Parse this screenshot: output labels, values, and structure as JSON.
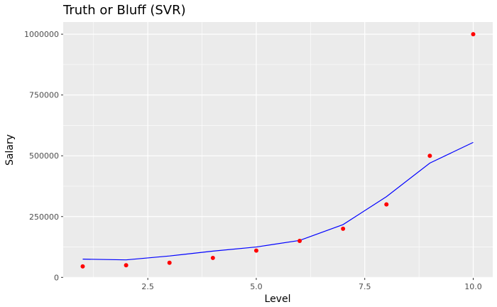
{
  "chart_data": {
    "type": "scatter",
    "title": "Truth or Bluff (SVR)",
    "xlabel": "Level",
    "ylabel": "Salary",
    "xlim": [
      0.55,
      10.45
    ],
    "ylim": [
      -2000,
      1050000
    ],
    "x_ticks": [
      2.5,
      5.0,
      7.5,
      10.0
    ],
    "x_tick_labels": [
      "2.5",
      "5.0",
      "7.5",
      "10.0"
    ],
    "x_minor_ticks": [
      1.25,
      3.75,
      6.25,
      8.75
    ],
    "y_ticks": [
      0,
      250000,
      500000,
      750000,
      1000000
    ],
    "y_tick_labels": [
      "0",
      "250000",
      "500000",
      "750000",
      "1000000"
    ],
    "y_minor_ticks": [
      125000,
      375000,
      625000,
      875000
    ],
    "grid": true,
    "series": [
      {
        "kind": "points",
        "color": "#ff0000",
        "x": [
          1,
          2,
          3,
          4,
          5,
          6,
          7,
          8,
          9,
          10
        ],
        "y": [
          45000,
          50000,
          60000,
          80000,
          110000,
          150000,
          200000,
          300000,
          500000,
          1000000
        ]
      },
      {
        "kind": "line",
        "color": "#0000ff",
        "x": [
          1,
          2,
          3,
          4,
          5,
          6,
          7,
          8,
          9,
          10
        ],
        "y": [
          75000,
          72000,
          88000,
          108000,
          125000,
          152000,
          217000,
          332000,
          470000,
          555000
        ]
      }
    ],
    "colors": {
      "panel": "#ebebeb",
      "grid": "#ffffff",
      "axis_text": "#4d4d4d"
    }
  }
}
